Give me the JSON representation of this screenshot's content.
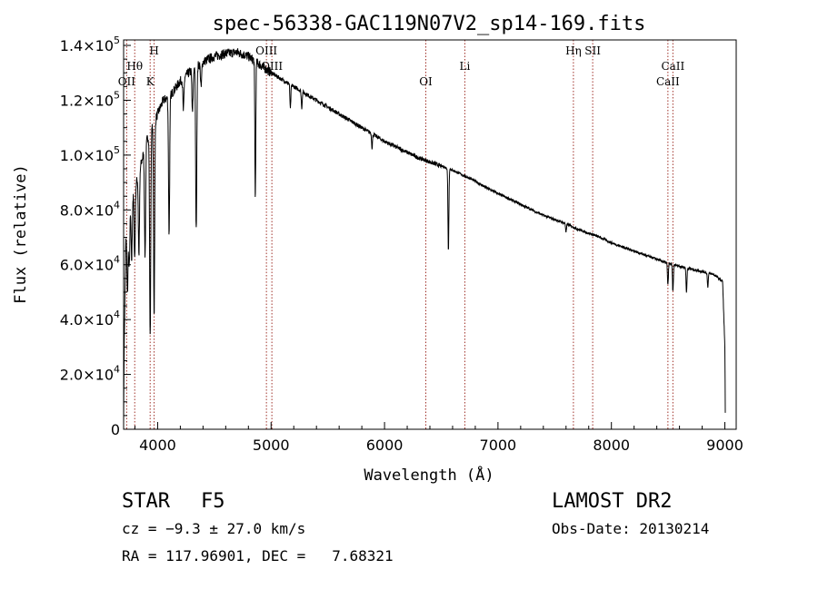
{
  "chart_data": {
    "type": "line",
    "title": "spec-56338-GAC119N07V2_sp14-169.fits",
    "xlabel": "Wavelength (Å)",
    "ylabel": "Flux (relative)",
    "xlim": [
      3700,
      9100
    ],
    "ylim": [
      0,
      142000
    ],
    "x_ticks": [
      4000,
      5000,
      6000,
      7000,
      8000,
      9000
    ],
    "y_ticks": [
      {
        "value": 0,
        "mant": "0",
        "exp": ""
      },
      {
        "value": 20000,
        "mant": "2.0×10",
        "exp": "4"
      },
      {
        "value": 40000,
        "mant": "4.0×10",
        "exp": "4"
      },
      {
        "value": 60000,
        "mant": "6.0×10",
        "exp": "4"
      },
      {
        "value": 80000,
        "mant": "8.0×10",
        "exp": "4"
      },
      {
        "value": 100000,
        "mant": "1.0×10",
        "exp": "5"
      },
      {
        "value": 120000,
        "mant": "1.2×10",
        "exp": "5"
      },
      {
        "value": 140000,
        "mant": "1.4×10",
        "exp": "5"
      }
    ],
    "line_color": "#000000",
    "marker_color": "#a0322a",
    "spectral_lines": [
      {
        "label": "OII",
        "wavelength": 3727,
        "row": 2
      },
      {
        "label": "Hθ",
        "wavelength": 3798,
        "row": 1
      },
      {
        "label": "K",
        "wavelength": 3934,
        "row": 2
      },
      {
        "label": "H",
        "wavelength": 3969,
        "row": 0
      },
      {
        "label": "OIII",
        "wavelength": 4959,
        "row": 0
      },
      {
        "label": "OIII",
        "wavelength": 5007,
        "row": 1
      },
      {
        "label": "OI",
        "wavelength": 6364,
        "row": 2
      },
      {
        "label": "Li",
        "wavelength": 6708,
        "row": 1
      },
      {
        "label": "Hη",
        "wavelength": 7665,
        "row": 0
      },
      {
        "label": "SII",
        "wavelength": 7835,
        "row": 0
      },
      {
        "label": "CaII",
        "wavelength": 8498,
        "row": 2
      },
      {
        "label": "CaII",
        "wavelength": 8542,
        "row": 1
      }
    ],
    "continuum": [
      [
        3700,
        2000
      ],
      [
        3705,
        30000
      ],
      [
        3720,
        70000
      ],
      [
        3760,
        82000
      ],
      [
        3800,
        88000
      ],
      [
        3850,
        96000
      ],
      [
        3900,
        105000
      ],
      [
        3950,
        110000
      ],
      [
        4000,
        115000
      ],
      [
        4050,
        120000
      ],
      [
        4100,
        121000
      ],
      [
        4150,
        124000
      ],
      [
        4200,
        127000
      ],
      [
        4300,
        131000
      ],
      [
        4400,
        134000
      ],
      [
        4500,
        136000
      ],
      [
        4600,
        137000
      ],
      [
        4700,
        137500
      ],
      [
        4800,
        136000
      ],
      [
        4900,
        133000
      ],
      [
        5000,
        130000
      ],
      [
        5100,
        127500
      ],
      [
        5200,
        125000
      ],
      [
        5300,
        122500
      ],
      [
        5400,
        120000
      ],
      [
        5500,
        117500
      ],
      [
        5600,
        115000
      ],
      [
        5700,
        112500
      ],
      [
        5800,
        110000
      ],
      [
        5900,
        107500
      ],
      [
        6000,
        105000
      ],
      [
        6100,
        103000
      ],
      [
        6200,
        101000
      ],
      [
        6300,
        99000
      ],
      [
        6400,
        97500
      ],
      [
        6500,
        96000
      ],
      [
        6600,
        94500
      ],
      [
        6700,
        92500
      ],
      [
        6800,
        90500
      ],
      [
        6900,
        88000
      ],
      [
        7000,
        86000
      ],
      [
        7100,
        84000
      ],
      [
        7200,
        82000
      ],
      [
        7300,
        80000
      ],
      [
        7400,
        78000
      ],
      [
        7500,
        76500
      ],
      [
        7600,
        75000
      ],
      [
        7700,
        73000
      ],
      [
        7800,
        71500
      ],
      [
        7900,
        70000
      ],
      [
        8000,
        68000
      ],
      [
        8100,
        66500
      ],
      [
        8200,
        65000
      ],
      [
        8300,
        63500
      ],
      [
        8400,
        62000
      ],
      [
        8500,
        60500
      ],
      [
        8600,
        59500
      ],
      [
        8700,
        58500
      ],
      [
        8800,
        57500
      ],
      [
        8900,
        56500
      ],
      [
        8980,
        54000
      ],
      [
        9000,
        30000
      ],
      [
        9005,
        0
      ]
    ],
    "absorption_lines": [
      {
        "wavelength": 3734,
        "depth": 25000
      },
      {
        "wavelength": 3750,
        "depth": 20000
      },
      {
        "wavelength": 3771,
        "depth": 22000
      },
      {
        "wavelength": 3798,
        "depth": 25000
      },
      {
        "wavelength": 3835,
        "depth": 30000
      },
      {
        "wavelength": 3889,
        "depth": 40000
      },
      {
        "wavelength": 3934,
        "depth": 75000
      },
      {
        "wavelength": 3969,
        "depth": 70000
      },
      {
        "wavelength": 4101,
        "depth": 50000
      },
      {
        "wavelength": 4227,
        "depth": 12000
      },
      {
        "wavelength": 4307,
        "depth": 16000
      },
      {
        "wavelength": 4340,
        "depth": 60000
      },
      {
        "wavelength": 4383,
        "depth": 9000
      },
      {
        "wavelength": 4861,
        "depth": 50000
      },
      {
        "wavelength": 5170,
        "depth": 9000
      },
      {
        "wavelength": 5270,
        "depth": 6000
      },
      {
        "wavelength": 5890,
        "depth": 5000
      },
      {
        "wavelength": 6563,
        "depth": 30000
      },
      {
        "wavelength": 7600,
        "depth": 3000
      },
      {
        "wavelength": 8498,
        "depth": 8000
      },
      {
        "wavelength": 8542,
        "depth": 10000
      },
      {
        "wavelength": 8662,
        "depth": 9000
      },
      {
        "wavelength": 8850,
        "depth": 5000
      }
    ]
  },
  "footer": {
    "object_type": "STAR",
    "subclass": "F5",
    "survey": "LAMOST DR2",
    "cz": "cz = −9.3 ± 27.0 km/s",
    "obs_date": "Obs-Date: 20130214",
    "coords": "RA = 117.96901, DEC =   7.68321"
  }
}
